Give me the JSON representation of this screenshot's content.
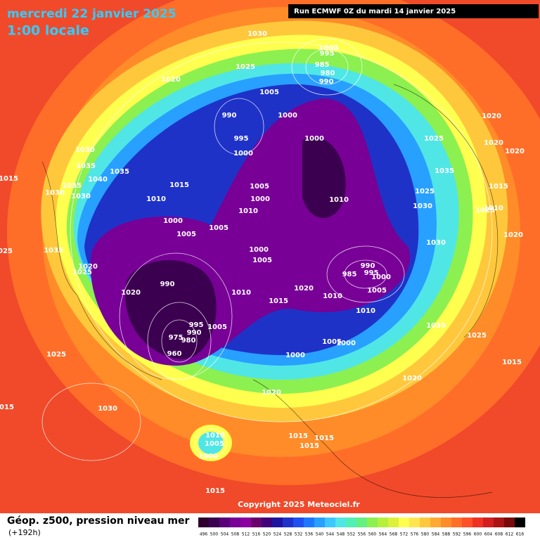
{
  "header": {
    "date": "mercredi 22 janvier 2025",
    "time": "1:00 locale",
    "run": "Run ECMWF 0Z du mardi 14 janvier 2025"
  },
  "footer": {
    "field": "Géop. z500, pression niveau mer",
    "lead": "(+192h)",
    "copyright": "Copyright 2025 Meteociel.fr"
  },
  "colorbar": {
    "ticks": [
      496,
      500,
      504,
      508,
      512,
      516,
      520,
      524,
      528,
      532,
      536,
      540,
      544,
      548,
      552,
      556,
      560,
      564,
      568,
      572,
      576,
      580,
      584,
      588,
      592,
      596,
      600,
      604,
      608,
      612,
      616
    ],
    "colors": [
      "#2d0030",
      "#3c0050",
      "#5a0078",
      "#780096",
      "#8c00a0",
      "#6a006e",
      "#40007a",
      "#1e14a0",
      "#1e32c8",
      "#1e50f0",
      "#1e78ff",
      "#28a0ff",
      "#3cc8ff",
      "#50e6e6",
      "#50f0b4",
      "#64f082",
      "#8cf050",
      "#b4f03c",
      "#dcf03c",
      "#ffff50",
      "#ffe650",
      "#ffc83c",
      "#ffaa32",
      "#ff8c28",
      "#ff6e28",
      "#ff5028",
      "#f03223",
      "#d21e1e",
      "#aa1414",
      "#780a0a",
      "#000000"
    ]
  },
  "isobar_labels": [
    1030,
    1000,
    995,
    985,
    980,
    990,
    1025,
    1020,
    1005,
    990,
    1000,
    995,
    1000,
    1000,
    1030,
    1035,
    1035,
    1040,
    1015,
    1030,
    1035,
    1030,
    1015,
    1010,
    1005,
    1000,
    1010,
    1010,
    1000,
    1005,
    1005,
    1000,
    1005,
    1035,
    1020,
    1025,
    990,
    1020,
    1010,
    1015,
    1020,
    990,
    985,
    995,
    1000,
    1005,
    1010,
    1010,
    995,
    1005,
    990,
    980,
    975,
    960,
    1005,
    1000,
    1000,
    1025,
    1020,
    1030,
    1015,
    1010,
    1005,
    1000,
    1015,
    1015,
    1015,
    1015,
    1020,
    1015,
    1025,
    1030,
    1025,
    1020,
    1020,
    1020,
    1035,
    1025,
    1030,
    1015,
    1025,
    1010,
    1020,
    1030,
    1025
  ]
}
